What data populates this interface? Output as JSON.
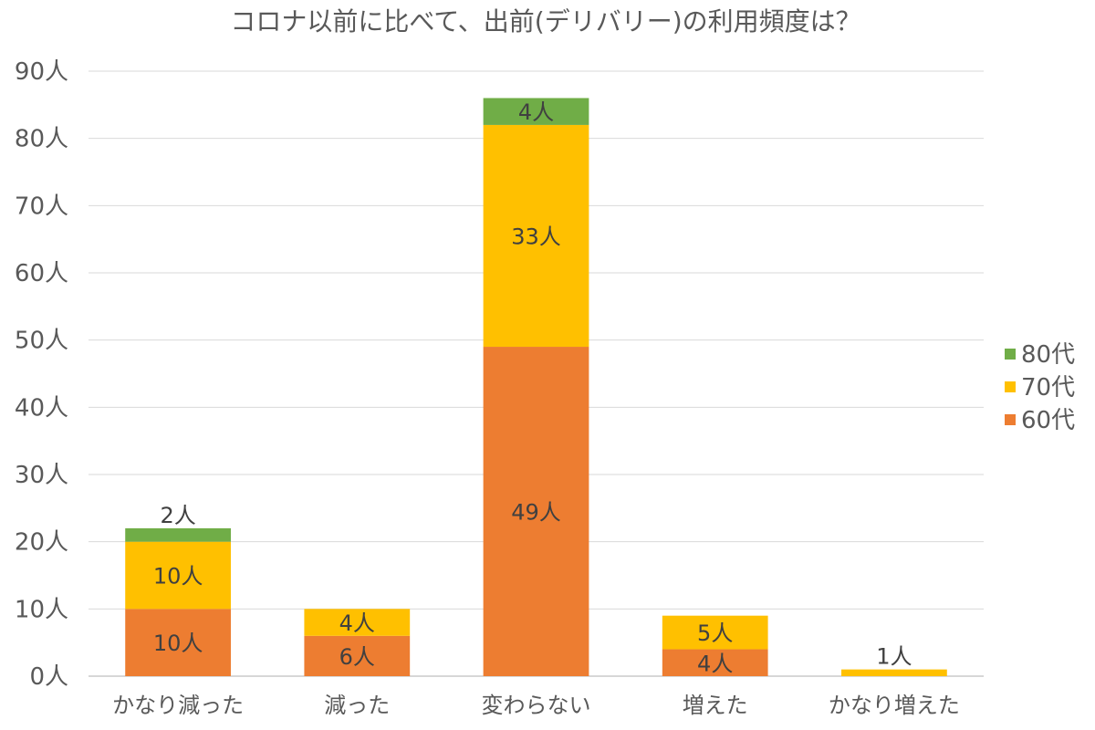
{
  "chart_data": {
    "type": "bar",
    "stacked": true,
    "title": "コロナ以前に比べて、出前(デリバリー)の利用頻度は？",
    "categories": [
      "かなり減った",
      "減った",
      "変わらない",
      "増えた",
      "かなり増えた"
    ],
    "series": [
      {
        "name": "60代",
        "color": "#ED7D31",
        "values": [
          10,
          6,
          49,
          4,
          0
        ]
      },
      {
        "name": "70代",
        "color": "#FFC000",
        "values": [
          10,
          4,
          33,
          5,
          1
        ]
      },
      {
        "name": "80代",
        "color": "#70AD47",
        "values": [
          2,
          0,
          4,
          0,
          0
        ]
      }
    ],
    "ylim": [
      0,
      90
    ],
    "yticks": [
      0,
      10,
      20,
      30,
      40,
      50,
      60,
      70,
      80,
      90
    ],
    "ytick_suffix": "人",
    "value_suffix": "人",
    "grid": true,
    "legend_position": "right"
  }
}
